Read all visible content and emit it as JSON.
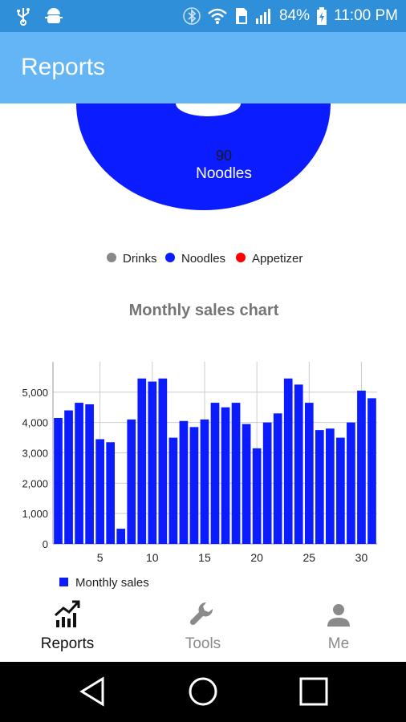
{
  "status_bar": {
    "battery_percent": "84%",
    "time": "11:00 PM",
    "icons": [
      "usb-icon",
      "android-debug-icon",
      "bluetooth-icon",
      "wifi-icon",
      "sim-card-icon",
      "signal-icon",
      "battery-icon"
    ]
  },
  "app_bar": {
    "title": "Reports"
  },
  "pie": {
    "center_value": "90",
    "center_label": "Noodles",
    "legend": [
      {
        "label": "Drinks",
        "color": "#888888"
      },
      {
        "label": "Noodles",
        "color": "#0b1cff"
      },
      {
        "label": "Appetizer",
        "color": "#ff0000"
      }
    ]
  },
  "bar_chart": {
    "title": "Monthly sales chart",
    "legend_label": "Monthly sales"
  },
  "chart_data": {
    "type": "bar",
    "title": "Monthly sales chart",
    "xlabel": "",
    "ylabel": "",
    "series_name": "Monthly sales",
    "color": "#0b1cff",
    "x": [
      1,
      2,
      3,
      4,
      5,
      6,
      7,
      8,
      9,
      10,
      11,
      12,
      13,
      14,
      15,
      16,
      17,
      18,
      19,
      20,
      21,
      22,
      23,
      24,
      25,
      26,
      27,
      28,
      29,
      30,
      31
    ],
    "values": [
      4150,
      4400,
      4650,
      4600,
      3450,
      3350,
      500,
      4100,
      5450,
      5350,
      5450,
      3500,
      4050,
      3850,
      4100,
      4650,
      4500,
      4650,
      3950,
      3150,
      4000,
      4300,
      5450,
      5250,
      4650,
      3750,
      3800,
      3500,
      4000,
      5050,
      4800
    ],
    "y_ticks": [
      0,
      1000,
      2000,
      3000,
      4000,
      5000
    ],
    "y_tick_labels": [
      "0",
      "1,000",
      "2,000",
      "3,000",
      "4,000",
      "5,000"
    ],
    "x_ticks": [
      5,
      10,
      15,
      20,
      25,
      30
    ],
    "x_tick_labels": [
      "5",
      "10",
      "15",
      "20",
      "25",
      "30"
    ],
    "ylim": [
      0,
      6000
    ],
    "grid": true
  },
  "bottom_nav": {
    "items": [
      {
        "label": "Reports",
        "icon": "trending-chart-icon",
        "active": true
      },
      {
        "label": "Tools",
        "icon": "wrench-icon",
        "active": false
      },
      {
        "label": "Me",
        "icon": "person-icon",
        "active": false
      }
    ]
  },
  "colors": {
    "status_bar": "#2f8fd8",
    "app_bar": "#64b5f6",
    "active_nav": "#111111",
    "inactive_nav": "#8a8a8a"
  }
}
